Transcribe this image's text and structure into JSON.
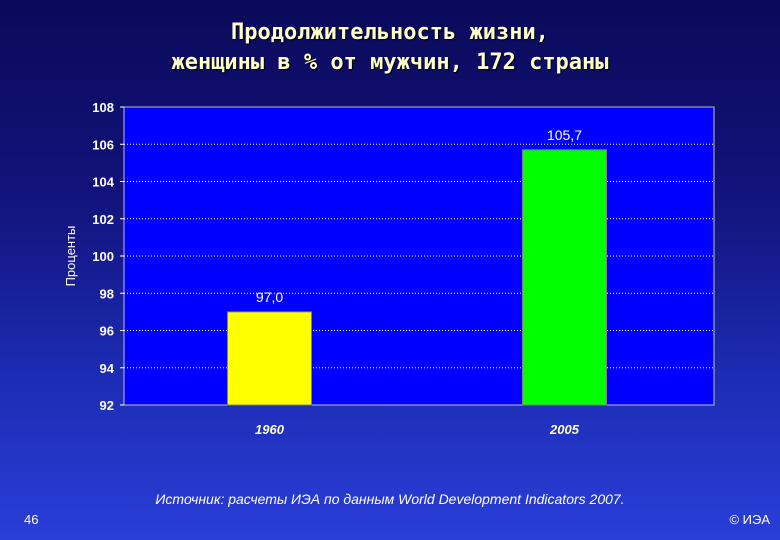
{
  "title_line1": "Продолжительность жизни,",
  "title_line2": "женщины в % от мужчин, 172 страны",
  "source": "Источник: расчеты ИЭА по данным World Development Indicators 2007.",
  "page_number": "46",
  "copyright": "© ИЭА",
  "chart_data": {
    "type": "bar",
    "categories": [
      "1960",
      "2005"
    ],
    "values": [
      97.0,
      105.7
    ],
    "data_labels": [
      "97,0",
      "105,7"
    ],
    "bar_colors": [
      "#ffff00",
      "#00ff00"
    ],
    "ylabel": "Проценты",
    "xlabel": "",
    "ylim": [
      92,
      108
    ],
    "yticks": [
      92,
      94,
      96,
      98,
      100,
      102,
      104,
      106,
      108
    ],
    "grid": true,
    "grid_style": "dotted",
    "plot_background": "#0000ff",
    "tick_color": "#ffffff",
    "category_label_color": "#ffffcc"
  }
}
